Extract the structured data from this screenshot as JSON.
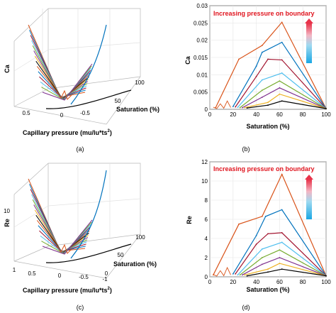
{
  "panels": [
    {
      "id": "a",
      "label": "(a)",
      "view": "3d",
      "z_label": "Ca",
      "x_label": "Capillary pressure (mu/lu*ts",
      "x_label_sup": "2",
      "x_label_close": ")",
      "y_label": "Saturation (%)",
      "x_ticks": [
        "0.5",
        "0",
        "-0.5"
      ],
      "y_ticks": [
        "50",
        "100"
      ],
      "z_ticks": []
    },
    {
      "id": "b",
      "label": "(b)",
      "view": "2d",
      "y_label": "Ca",
      "x_label": "Saturation (%)",
      "annotation": "Increasing pressure on boundary",
      "x_ticks": [
        "0",
        "20",
        "40",
        "60",
        "80",
        "100"
      ],
      "y_ticks": [
        "0",
        "0.005",
        "0.01",
        "0.015",
        "0.02",
        "0.025",
        "0.03"
      ]
    },
    {
      "id": "c",
      "label": "(c)",
      "view": "3d",
      "z_label": "Re",
      "x_label": "Capillary pressure (mu/lu*ts",
      "x_label_sup": "2",
      "x_label_close": ")",
      "y_label": "Saturation (%)",
      "x_ticks": [
        "1",
        "0.5",
        "0",
        "-0.5",
        "-1"
      ],
      "y_ticks": [
        "0",
        "50",
        "100"
      ],
      "z_ticks": [
        "10"
      ]
    },
    {
      "id": "d",
      "label": "(d)",
      "view": "2d",
      "y_label": "Re",
      "x_label": "Saturation (%)",
      "annotation": "Increasing pressure on boundary",
      "x_ticks": [
        "0",
        "20",
        "40",
        "60",
        "80",
        "100"
      ],
      "y_ticks": [
        "0",
        "2",
        "4",
        "6",
        "8",
        "10",
        "12"
      ]
    }
  ],
  "colors": [
    "#d95319",
    "#0072bd",
    "#a2142f",
    "#4dbeee",
    "#77ac30",
    "#7e2f8e",
    "#edb120",
    "#000000"
  ],
  "chart_data": [
    {
      "panel": "b",
      "type": "line",
      "xlabel": "Saturation (%)",
      "ylabel": "Ca",
      "xlim": [
        0,
        100
      ],
      "ylim": [
        0,
        0.03
      ],
      "series": [
        {
          "color": "#d95319",
          "x": [
            5,
            25,
            45,
            62,
            100
          ],
          "y": [
            0.0005,
            0.0145,
            0.0185,
            0.0252,
            0.0002
          ]
        },
        {
          "color": "#0072bd",
          "x": [
            20,
            40,
            45,
            62,
            100
          ],
          "y": [
            0.0008,
            0.0125,
            0.0165,
            0.0194,
            0.0002
          ]
        },
        {
          "color": "#a2142f",
          "x": [
            22,
            40,
            50,
            62,
            100
          ],
          "y": [
            0.0007,
            0.0095,
            0.0145,
            0.0143,
            0.0002
          ]
        },
        {
          "color": "#4dbeee",
          "x": [
            24,
            45,
            62,
            100
          ],
          "y": [
            0.0006,
            0.0085,
            0.0105,
            0.0002
          ]
        },
        {
          "color": "#77ac30",
          "x": [
            26,
            45,
            60,
            100
          ],
          "y": [
            0.0005,
            0.0055,
            0.0082,
            0.0002
          ]
        },
        {
          "color": "#7e2f8e",
          "x": [
            28,
            45,
            60,
            100
          ],
          "y": [
            0.0005,
            0.0035,
            0.0062,
            0.0002
          ]
        },
        {
          "color": "#edb120",
          "x": [
            30,
            50,
            60,
            100
          ],
          "y": [
            0.0005,
            0.002,
            0.0044,
            0.0002
          ]
        },
        {
          "color": "#000000",
          "x": [
            32,
            50,
            62,
            100
          ],
          "y": [
            0.0004,
            0.0012,
            0.0024,
            0.0002
          ]
        }
      ]
    },
    {
      "panel": "d",
      "type": "line",
      "xlabel": "Saturation (%)",
      "ylabel": "Re",
      "xlim": [
        0,
        100
      ],
      "ylim": [
        0,
        12
      ],
      "series": [
        {
          "color": "#d95319",
          "x": [
            3,
            25,
            45,
            62,
            100
          ],
          "y": [
            0.2,
            5.5,
            6.3,
            10.7,
            0.1
          ]
        },
        {
          "color": "#0072bd",
          "x": [
            20,
            40,
            48,
            62,
            100
          ],
          "y": [
            0.3,
            4.3,
            6.3,
            7.0,
            0.1
          ]
        },
        {
          "color": "#a2142f",
          "x": [
            22,
            40,
            50,
            62,
            100
          ],
          "y": [
            0.3,
            3.4,
            4.5,
            4.6,
            0.1
          ]
        },
        {
          "color": "#4dbeee",
          "x": [
            24,
            45,
            62,
            100
          ],
          "y": [
            0.2,
            2.9,
            3.6,
            0.1
          ]
        },
        {
          "color": "#77ac30",
          "x": [
            26,
            45,
            60,
            100
          ],
          "y": [
            0.2,
            2.0,
            2.8,
            0.1
          ]
        },
        {
          "color": "#7e2f8e",
          "x": [
            28,
            45,
            60,
            100
          ],
          "y": [
            0.2,
            1.3,
            2.0,
            0.1
          ]
        },
        {
          "color": "#edb120",
          "x": [
            30,
            50,
            60,
            100
          ],
          "y": [
            0.2,
            0.8,
            1.4,
            0.1
          ]
        },
        {
          "color": "#000000",
          "x": [
            32,
            50,
            62,
            100
          ],
          "y": [
            0.1,
            0.5,
            0.8,
            0.1
          ]
        }
      ]
    }
  ]
}
